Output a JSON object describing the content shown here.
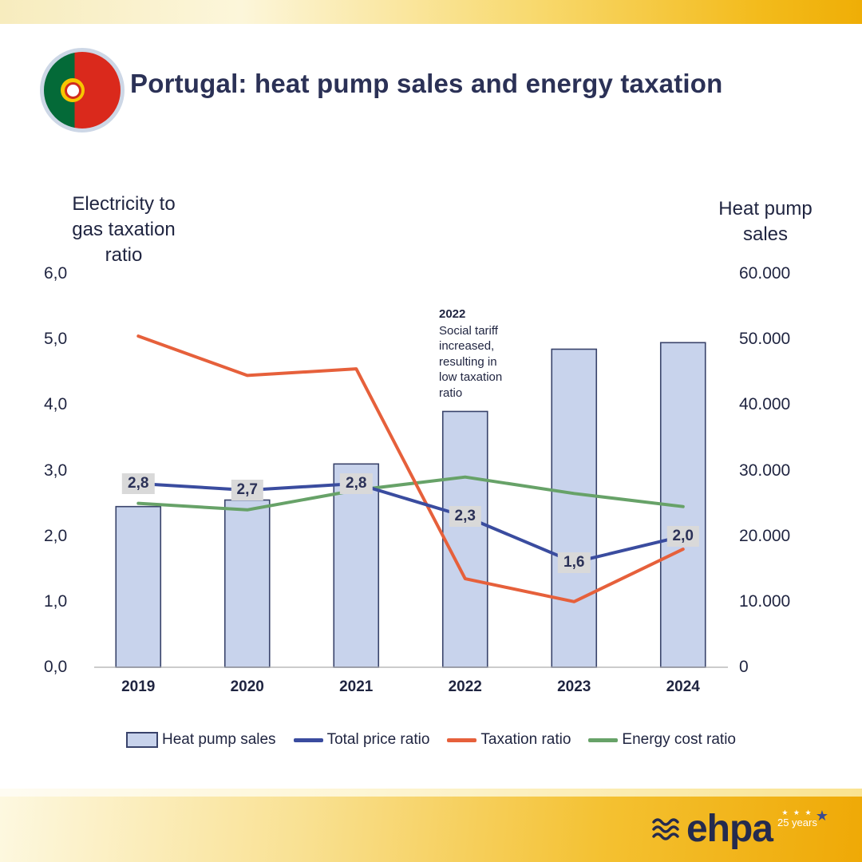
{
  "header": {
    "title": "Portugal: heat pump sales and energy taxation"
  },
  "chart_data": {
    "type": "combo-bar-line",
    "categories": [
      "2019",
      "2020",
      "2021",
      "2022",
      "2023",
      "2024"
    ],
    "bar_series": {
      "name": "Heat pump sales",
      "axis": "right",
      "values": [
        24500,
        25500,
        31000,
        39000,
        48500,
        49500
      ],
      "fill": "#c8d3ec",
      "stroke": "#39436b"
    },
    "line_series": [
      {
        "name": "Total price ratio",
        "axis": "left",
        "color": "#3a4c9f",
        "values": [
          2.8,
          2.7,
          2.8,
          2.3,
          1.6,
          2.0
        ],
        "labels": [
          "2,8",
          "2,7",
          "2,8",
          "2,3",
          "1,6",
          "2,0"
        ]
      },
      {
        "name": "Taxation ratio",
        "axis": "left",
        "color": "#e6603b",
        "values": [
          5.05,
          4.45,
          4.55,
          1.35,
          1.0,
          1.8
        ],
        "labels": []
      },
      {
        "name": "Energy cost ratio",
        "axis": "left",
        "color": "#67a268",
        "values": [
          2.5,
          2.4,
          2.7,
          2.9,
          2.65,
          2.45
        ],
        "labels": []
      }
    ],
    "left_axis": {
      "title": "Electricity to gas taxation ratio",
      "min": 0,
      "max": 6,
      "ticks": [
        "6,0",
        "5,0",
        "4,0",
        "3,0",
        "2,0",
        "1,0",
        "0,0"
      ]
    },
    "right_axis": {
      "title": "Heat pump sales",
      "min": 0,
      "max": 60000,
      "ticks": [
        "60.000",
        "50.000",
        "40.000",
        "30.000",
        "20.000",
        "10.000",
        "0"
      ]
    },
    "annotation": {
      "year": "2022",
      "text": "Social tariff increased, resulting in low taxation ratio"
    },
    "grid": false,
    "legend_position": "bottom"
  },
  "legend": [
    {
      "label": "Heat pump sales",
      "type": "bar",
      "fill": "#c8d3ec",
      "stroke": "#39436b"
    },
    {
      "label": "Total price ratio",
      "type": "line",
      "color": "#3a4c9f"
    },
    {
      "label": "Taxation ratio",
      "type": "line",
      "color": "#e6603b"
    },
    {
      "label": "Energy cost ratio",
      "type": "line",
      "color": "#67a268"
    }
  ],
  "footer": {
    "logo": "ehpa",
    "anniversary": "25 years"
  }
}
